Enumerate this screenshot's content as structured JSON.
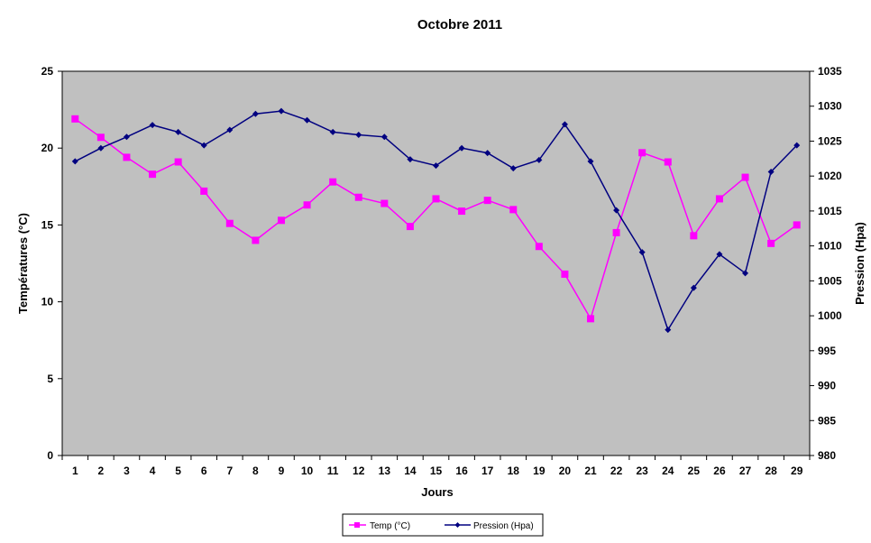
{
  "chart_data": {
    "type": "line",
    "title": "Octobre 2011",
    "xlabel": "Jours",
    "ylabel_left": "Températures (°C)",
    "ylabel_right": "Pression (Hpa)",
    "categories": [
      "1",
      "2",
      "3",
      "4",
      "5",
      "6",
      "7",
      "8",
      "9",
      "10",
      "11",
      "12",
      "13",
      "14",
      "15",
      "16",
      "17",
      "18",
      "19",
      "20",
      "21",
      "22",
      "23",
      "24",
      "25",
      "26",
      "27",
      "28",
      "29"
    ],
    "y_left": {
      "min": 0,
      "max": 25,
      "ticks": [
        "0",
        "5",
        "10",
        "15",
        "20",
        "25"
      ]
    },
    "y_right": {
      "min": 980,
      "max": 1035,
      "ticks": [
        "980",
        "985",
        "990",
        "995",
        "1000",
        "1005",
        "1010",
        "1015",
        "1020",
        "1025",
        "1030",
        "1035"
      ]
    },
    "grid": false,
    "legend_position": "bottom",
    "plot_background": "#c0c0c0",
    "series": [
      {
        "name": "Temp (°C)",
        "axis": "left",
        "color": "#ff00ff",
        "marker": "square",
        "values": [
          21.9,
          20.7,
          19.4,
          18.3,
          19.1,
          17.2,
          15.1,
          14.0,
          15.3,
          16.3,
          17.8,
          16.8,
          16.4,
          14.9,
          16.7,
          15.9,
          16.6,
          16.0,
          13.6,
          11.8,
          8.9,
          14.5,
          19.7,
          19.1,
          14.3,
          16.7,
          18.1,
          13.8,
          15.0
        ]
      },
      {
        "name": "Pression (Hpa)",
        "axis": "right",
        "color": "#000080",
        "marker": "diamond",
        "values": [
          1022.1,
          1024.0,
          1025.6,
          1027.3,
          1026.3,
          1024.4,
          1026.6,
          1028.9,
          1029.3,
          1028.0,
          1026.3,
          1025.9,
          1025.6,
          1022.4,
          1021.5,
          1024.0,
          1023.3,
          1021.1,
          1022.3,
          1027.4,
          1022.1,
          1015.1,
          1009.1,
          998.0,
          1004.0,
          1008.8,
          1006.1,
          1020.6,
          1024.4
        ]
      }
    ]
  }
}
